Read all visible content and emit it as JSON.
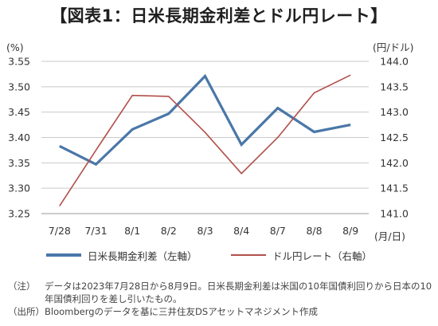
{
  "title": "【図表1：日米長期金利差とドル円レート】",
  "chart_data": {
    "type": "line",
    "categories": [
      "7/28",
      "7/31",
      "8/1",
      "8/2",
      "8/3",
      "8/4",
      "8/7",
      "8/8",
      "8/9"
    ],
    "x_unit": "(月/日)",
    "left_axis": {
      "unit": "(%)",
      "range": [
        3.25,
        3.55
      ],
      "ticks": [
        "3.25",
        "3.30",
        "3.35",
        "3.40",
        "3.45",
        "3.50",
        "3.55"
      ]
    },
    "right_axis": {
      "unit": "(円/ドル)",
      "range": [
        141.0,
        144.0
      ],
      "ticks": [
        "141.0",
        "141.5",
        "142.0",
        "142.5",
        "143.0",
        "143.5",
        "144.0"
      ]
    },
    "grid": true,
    "legend_position": "bottom",
    "series": [
      {
        "name": "日米長期金利差（左軸）",
        "axis": "left",
        "color": "#4a77a8",
        "values": [
          3.383,
          3.347,
          3.416,
          3.447,
          3.521,
          3.386,
          3.458,
          3.411,
          3.425
        ]
      },
      {
        "name": "ドル円レート（右軸）",
        "axis": "right",
        "color": "#b0504b",
        "values": [
          141.15,
          142.25,
          143.33,
          143.31,
          142.6,
          141.79,
          142.5,
          143.38,
          143.73
        ]
      }
    ]
  },
  "notes": [
    {
      "label": "（注）",
      "text": "データは2023年7月28日から8月9日。日米長期金利差は米国の10年国債利回りから日本の10年国債利回りを差し引いたもの。"
    },
    {
      "label": "（出所）",
      "text": "Bloombergのデータを基に三井住友DSアセットマネジメント作成"
    }
  ]
}
